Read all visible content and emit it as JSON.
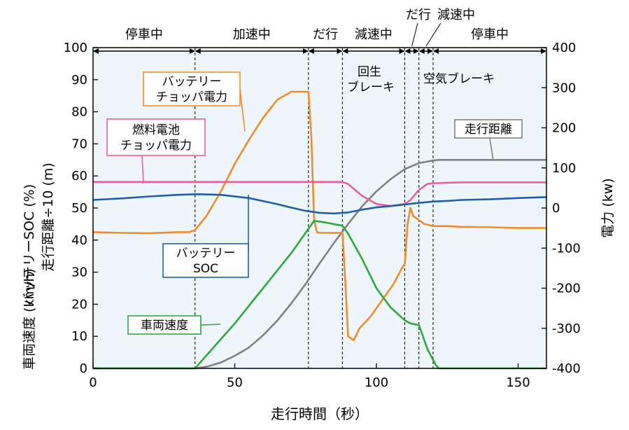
{
  "chart_data": {
    "type": "line",
    "xlabel": "走行時間（秒）",
    "ylabel_left": [
      "車両速度 (km/h)",
      "バッテリーSOC (%)",
      "走行距離÷10 (m)"
    ],
    "ylabel_right": "電力 (kw)",
    "xlim": [
      0,
      160
    ],
    "ylim_left": [
      0,
      100
    ],
    "ylim_right": [
      -400,
      400
    ],
    "x_ticks": [
      "0",
      "50",
      "100",
      "150"
    ],
    "y_left_ticks": [
      "0",
      "10",
      "20",
      "30",
      "40",
      "50",
      "60",
      "70",
      "80",
      "90",
      "100"
    ],
    "y_right_ticks": [
      "-400",
      "-300",
      "-200",
      "-100",
      "0",
      "100",
      "200",
      "300",
      "400"
    ],
    "grid": false,
    "phases": [
      {
        "label": "停車中",
        "start": 0,
        "end": 36
      },
      {
        "label": "加速中",
        "start": 36,
        "end": 76
      },
      {
        "label": "だ行",
        "start": 76,
        "end": 88
      },
      {
        "label": "減速中",
        "start": 88,
        "end": 110
      },
      {
        "label": "だ行",
        "start": 110,
        "end": 115
      },
      {
        "label": "減速中",
        "start": 115,
        "end": 120
      },
      {
        "label": "停車中",
        "start": 120,
        "end": 160
      }
    ],
    "phase_dividers": [
      36,
      76,
      88,
      110,
      115,
      120
    ],
    "annotations": {
      "regen_brake": [
        "回生",
        "ブレーキ"
      ],
      "air_brake": "空気ブレーキ"
    },
    "series": [
      {
        "name": "バッテリーチョッパ電力",
        "label_lines": [
          "バッテリー",
          "チョッパ電力"
        ],
        "axis": "right",
        "color": "#f28c28",
        "x": [
          0,
          10,
          20,
          30,
          34,
          36,
          40,
          45,
          50,
          55,
          60,
          65,
          70,
          74,
          76,
          77,
          78,
          79,
          80,
          85,
          88,
          89,
          90,
          92,
          94,
          98,
          100,
          103,
          106,
          109,
          110,
          111,
          112,
          113,
          115,
          117,
          120,
          125,
          130,
          140,
          150,
          160
        ],
        "values": [
          -60,
          -62,
          -63,
          -60,
          -60,
          -55,
          -20,
          40,
          110,
          170,
          225,
          270,
          290,
          290,
          290,
          180,
          -30,
          -60,
          -62,
          -62,
          -62,
          -180,
          -320,
          -330,
          -300,
          -270,
          -250,
          -220,
          -190,
          -150,
          -140,
          -40,
          0,
          -20,
          -30,
          -40,
          -45,
          -45,
          -47,
          -48,
          -50,
          -50
        ]
      },
      {
        "name": "燃料電池チョッパ電力",
        "label_lines": [
          "燃料電池",
          "チョッパ電力"
        ],
        "axis": "right",
        "color": "#e8609a",
        "x": [
          0,
          20,
          40,
          60,
          80,
          88,
          90,
          92,
          95,
          100,
          105,
          110,
          112,
          115,
          118,
          120,
          122,
          125,
          130,
          140,
          150,
          160
        ],
        "values": [
          65,
          65,
          65,
          65,
          65,
          65,
          60,
          48,
          30,
          10,
          5,
          10,
          20,
          45,
          60,
          62,
          62,
          63,
          64,
          64,
          64,
          64
        ]
      },
      {
        "name": "バッテリーSOC",
        "label_lines": [
          "バッテリー",
          "SOC"
        ],
        "axis": "left",
        "color": "#1f5fa8",
        "x": [
          0,
          10,
          20,
          30,
          37,
          45,
          55,
          65,
          70,
          75,
          80,
          85,
          90,
          95,
          100,
          105,
          110,
          115,
          120,
          125,
          130,
          140,
          150,
          160
        ],
        "values": [
          52.5,
          53,
          53.6,
          54.1,
          54.3,
          54.1,
          53.1,
          51.2,
          50.1,
          49.1,
          48.5,
          48.3,
          48.6,
          49.5,
          50.2,
          50.6,
          51.1,
          51.6,
          52,
          52.2,
          52.5,
          52.7,
          53.1,
          53.4
        ]
      },
      {
        "name": "車両速度",
        "label_lines": [
          "車両速度"
        ],
        "axis": "left",
        "color": "#2ea83a",
        "x": [
          0,
          36,
          50,
          60,
          70,
          78,
          82,
          86,
          88,
          90,
          95,
          100,
          105,
          110,
          112,
          115,
          118,
          121,
          122,
          130,
          140,
          160
        ],
        "values": [
          0,
          0,
          14,
          25,
          36,
          46,
          45.5,
          44.8,
          44.5,
          42,
          34,
          25,
          19,
          15,
          14,
          13.5,
          6,
          1,
          0,
          0,
          0,
          0
        ]
      },
      {
        "name": "走行距離",
        "label_lines": [
          "走行距離"
        ],
        "axis": "left",
        "color": "#808080",
        "x": [
          0,
          36,
          40,
          45,
          50,
          55,
          60,
          65,
          70,
          75,
          80,
          85,
          90,
          95,
          100,
          105,
          110,
          115,
          120,
          122,
          130,
          140,
          150,
          160
        ],
        "values": [
          0,
          0,
          0.5,
          1.8,
          3.9,
          6.5,
          10.3,
          14.9,
          20.3,
          26.3,
          32.8,
          39.1,
          45,
          50.6,
          55.2,
          59,
          62.1,
          64,
          64.8,
          65,
          65,
          65,
          65,
          65
        ]
      }
    ]
  }
}
